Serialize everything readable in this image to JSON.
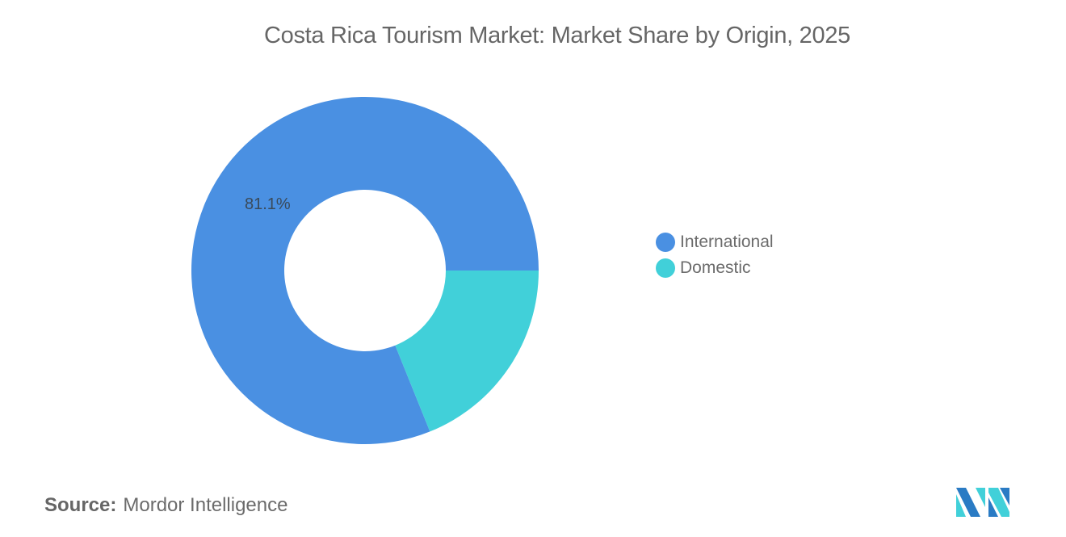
{
  "title": "Costa Rica Tourism Market: Market Share by Origin, 2025",
  "chart_data": {
    "type": "pie",
    "subtype": "donut",
    "title": "Costa Rica Tourism Market: Market Share by Origin, 2025",
    "categories": [
      "International",
      "Domestic"
    ],
    "values": [
      81.1,
      18.9
    ],
    "colors": [
      "#4a90e2",
      "#41d0d9"
    ],
    "data_labels": [
      "81.1%",
      ""
    ],
    "legend_position": "right",
    "unit": "%"
  },
  "slice_label": "81.1%",
  "legend": [
    {
      "label": "International",
      "color": "#4a90e2"
    },
    {
      "label": "Domestic",
      "color": "#41d0d9"
    }
  ],
  "source": {
    "prefix": "Source:",
    "text": "Mordor Intelligence"
  },
  "logo": {
    "icon": "mordor-intelligence-logo-icon",
    "colors": [
      "#2a7bc4",
      "#41d0d9"
    ]
  }
}
